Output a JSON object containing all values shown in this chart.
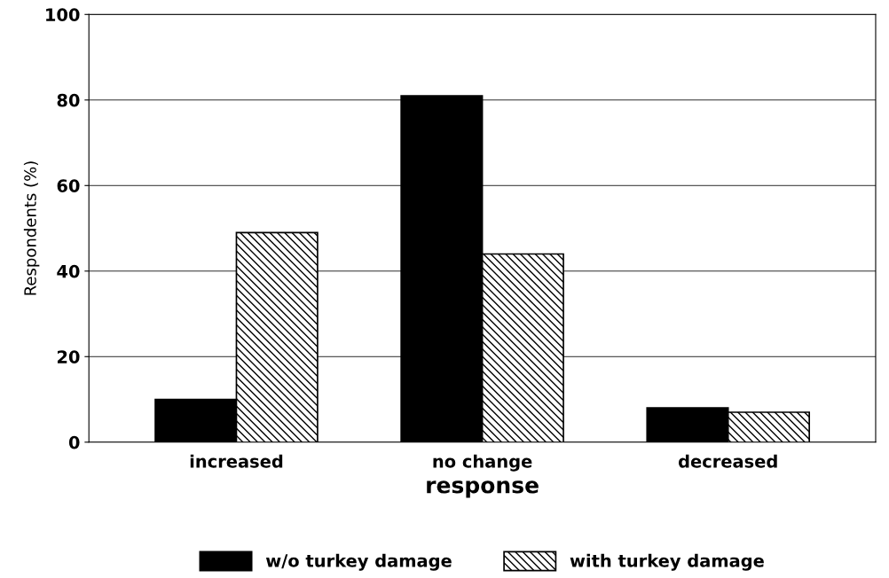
{
  "chart_data": {
    "type": "bar",
    "xlabel": "response",
    "ylabel": "Respondents (%)",
    "categories": [
      "increased",
      "no change",
      "decreased"
    ],
    "series": [
      {
        "name": "w/o turkey damage",
        "color": "#000000",
        "values": [
          10,
          81,
          8
        ]
      },
      {
        "name": "with turkey damage",
        "color": "#000000",
        "values": [
          49,
          44,
          7
        ]
      }
    ],
    "ylim": [
      0,
      100
    ],
    "yticks": [
      0,
      20,
      40,
      60,
      80,
      100
    ],
    "grid": "y",
    "legend": "bottom"
  }
}
